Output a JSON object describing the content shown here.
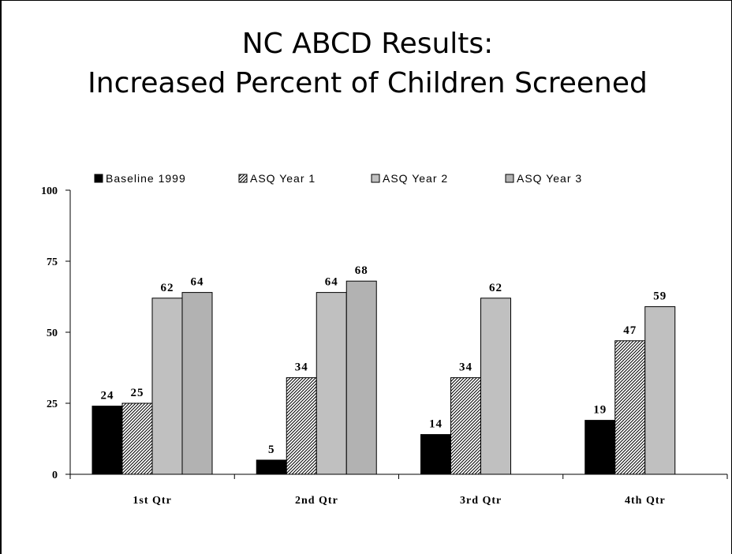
{
  "slide": {
    "title_line1": "NC ABCD Results:",
    "title_line2": "Increased Percent of Children Screened"
  },
  "chart_data": {
    "type": "bar",
    "title": "NC ABCD Results: Increased Percent of Children Screened",
    "xlabel": "",
    "ylabel": "",
    "categories": [
      "1st Qtr",
      "2nd Qtr",
      "3rd Qtr",
      "4th Qtr"
    ],
    "ylim": [
      0,
      100
    ],
    "yticks": [
      0,
      25,
      50,
      75,
      100
    ],
    "grid": false,
    "legend_position": "top",
    "series": [
      {
        "name": "Baseline 1999",
        "values": [
          24,
          5,
          14,
          19
        ],
        "color": "#000000",
        "pattern": "solid"
      },
      {
        "name": "ASQ Year 1",
        "values": [
          25,
          34,
          34,
          47
        ],
        "color": "#7f7f7f",
        "pattern": "diagonal-hatch"
      },
      {
        "name": "ASQ Year 2",
        "values": [
          62,
          64,
          62,
          59
        ],
        "color": "#c0c0c0",
        "pattern": "solid"
      },
      {
        "name": "ASQ Year 3",
        "values": [
          64,
          68,
          null,
          null
        ],
        "color": "#b2b2b2",
        "pattern": "solid"
      }
    ]
  }
}
